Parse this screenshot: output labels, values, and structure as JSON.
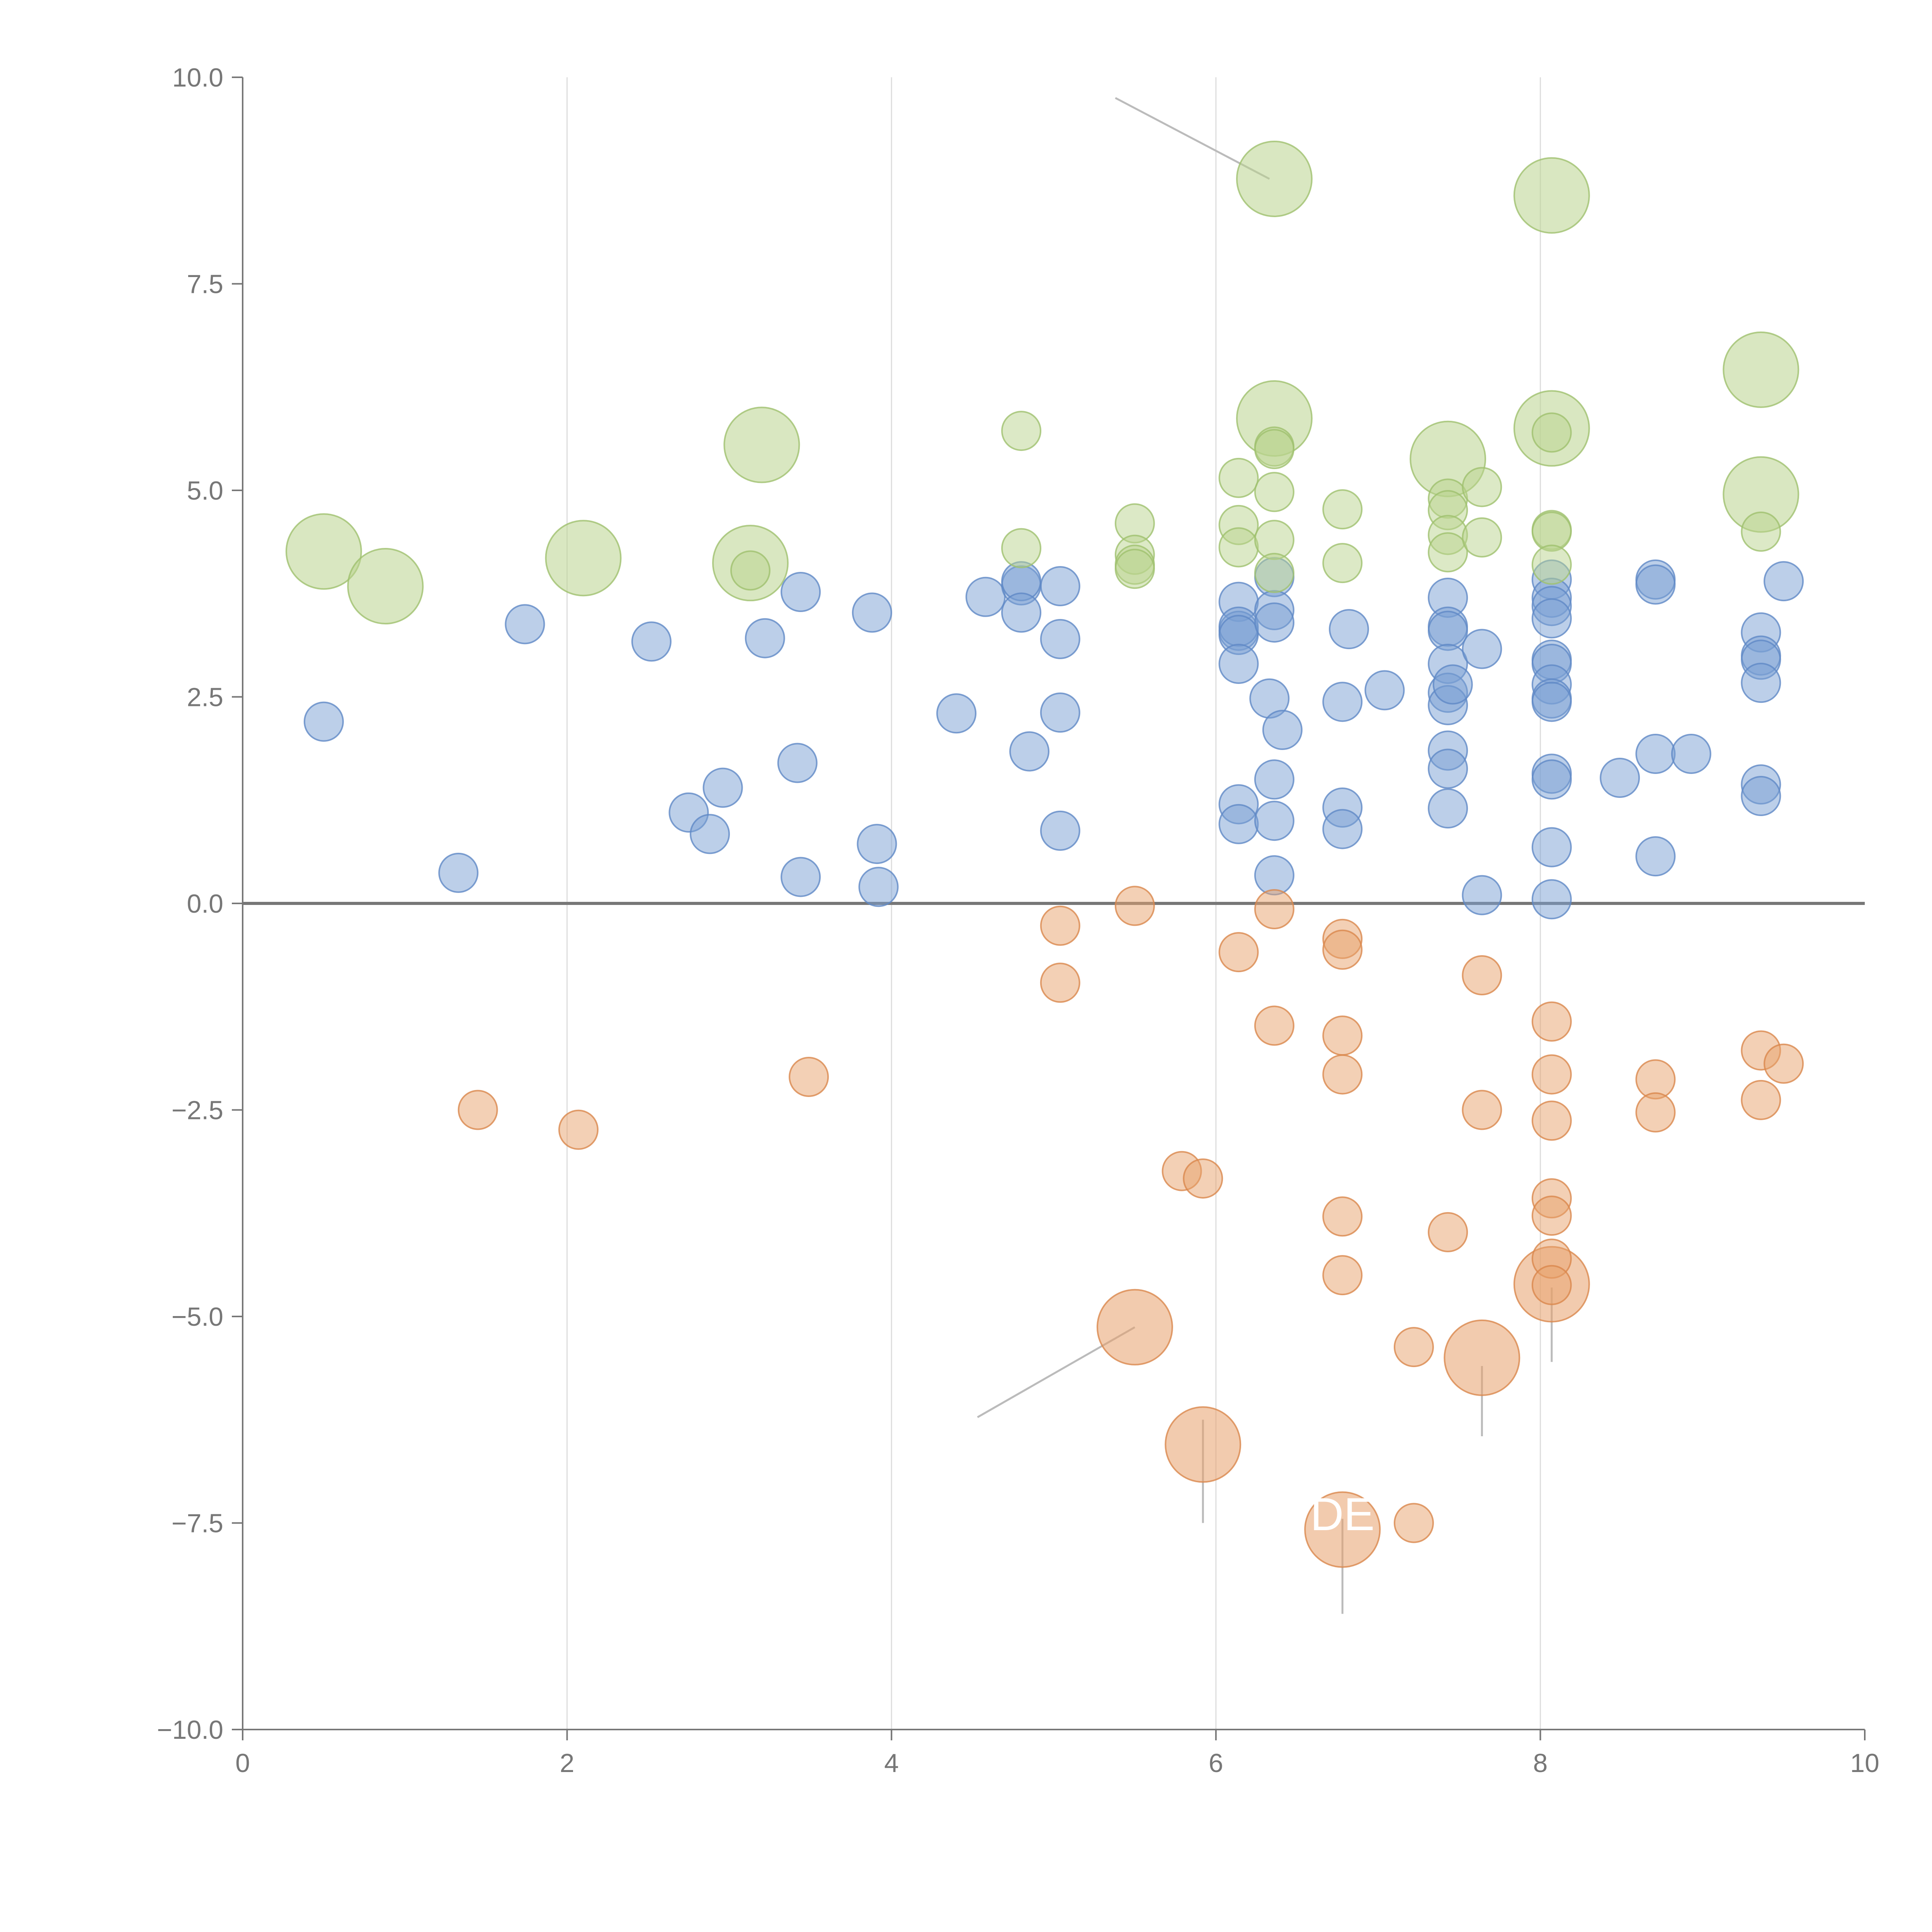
{
  "chart_data": {
    "type": "scatter",
    "title": "",
    "xlabel": "",
    "ylabel": "",
    "xlim": [
      0,
      10
    ],
    "ylim": [
      -10,
      10
    ],
    "x_ticks": [
      0,
      2,
      4,
      6,
      8,
      10
    ],
    "x_tick_labels": [
      "0",
      "2",
      "4",
      "6",
      "8",
      "10"
    ],
    "y_ticks": [
      -10,
      -7.5,
      -5,
      -2.5,
      0,
      2.5,
      5,
      7.5,
      10
    ],
    "y_tick_labels": [
      "−10.0",
      "−7.5",
      "−5.0",
      "−2.5",
      "0.0",
      "2.5",
      "5.0",
      "7.5",
      "10.0"
    ],
    "vertical_gridlines_at": [
      2,
      4,
      6,
      8
    ],
    "zero_line": true,
    "legend": "none",
    "colors": {
      "blue": "#7a9fd4",
      "blue_stroke": "#5f88c6",
      "orange": "#e8a16c",
      "orange_stroke": "#d9874c",
      "green": "#b9d48e",
      "green_stroke": "#9fc06e",
      "axis": "#777777",
      "grid": "#dddddd",
      "zero": "#777777",
      "leader": "#bbbbbb"
    },
    "series": [
      {
        "name": "blue",
        "size": "small",
        "points": [
          [
            0.5,
            2.2
          ],
          [
            1.33,
            0.37
          ],
          [
            1.74,
            3.38
          ],
          [
            2.52,
            3.17
          ],
          [
            2.75,
            1.1
          ],
          [
            2.88,
            0.84
          ],
          [
            2.96,
            1.4
          ],
          [
            3.22,
            3.21
          ],
          [
            3.42,
            1.7
          ],
          [
            3.44,
            3.77
          ],
          [
            3.44,
            0.32
          ],
          [
            3.88,
            3.52
          ],
          [
            3.91,
            0.72
          ],
          [
            3.92,
            0.2
          ],
          [
            4.4,
            2.3
          ],
          [
            4.58,
            3.71
          ],
          [
            4.8,
            3.85
          ],
          [
            4.8,
            3.9
          ],
          [
            4.8,
            3.52
          ],
          [
            4.85,
            1.84
          ],
          [
            5.04,
            3.84
          ],
          [
            5.04,
            3.2
          ],
          [
            5.04,
            2.31
          ],
          [
            5.04,
            0.88
          ],
          [
            6.14,
            3.65
          ],
          [
            6.14,
            3.3
          ],
          [
            6.14,
            3.35
          ],
          [
            6.14,
            3.25
          ],
          [
            6.14,
            2.9
          ],
          [
            6.14,
            1.2
          ],
          [
            6.14,
            0.96
          ],
          [
            6.33,
            2.48
          ],
          [
            6.36,
            3.95
          ],
          [
            6.36,
            3.55
          ],
          [
            6.36,
            3.4
          ],
          [
            6.36,
            1.5
          ],
          [
            6.36,
            1.0
          ],
          [
            6.36,
            0.34
          ],
          [
            6.41,
            2.1
          ],
          [
            6.78,
            2.44
          ],
          [
            6.78,
            1.16
          ],
          [
            6.78,
            0.9
          ],
          [
            6.82,
            3.32
          ],
          [
            7.04,
            2.58
          ],
          [
            7.43,
            3.7
          ],
          [
            7.43,
            3.35
          ],
          [
            7.43,
            3.3
          ],
          [
            7.43,
            2.9
          ],
          [
            7.43,
            2.55
          ],
          [
            7.43,
            2.4
          ],
          [
            7.43,
            1.85
          ],
          [
            7.43,
            1.63
          ],
          [
            7.43,
            1.15
          ],
          [
            7.46,
            2.65
          ],
          [
            7.64,
            3.08
          ],
          [
            7.64,
            0.1
          ],
          [
            8.07,
            3.92
          ],
          [
            8.07,
            3.7
          ],
          [
            8.07,
            3.6
          ],
          [
            8.07,
            3.45
          ],
          [
            8.07,
            2.95
          ],
          [
            8.07,
            2.9
          ],
          [
            8.07,
            2.65
          ],
          [
            8.07,
            2.48
          ],
          [
            8.07,
            2.44
          ],
          [
            8.07,
            1.57
          ],
          [
            8.07,
            1.5
          ],
          [
            8.07,
            0.68
          ],
          [
            8.07,
            0.05
          ],
          [
            8.49,
            1.52
          ],
          [
            8.71,
            3.92
          ],
          [
            8.71,
            3.86
          ],
          [
            8.71,
            1.81
          ],
          [
            8.71,
            0.57
          ],
          [
            8.93,
            1.81
          ],
          [
            9.36,
            3.28
          ],
          [
            9.36,
            3.0
          ],
          [
            9.36,
            2.95
          ],
          [
            9.36,
            2.67
          ],
          [
            9.36,
            1.44
          ],
          [
            9.36,
            1.3
          ],
          [
            9.5,
            3.9
          ]
        ]
      },
      {
        "name": "orange",
        "size": "small",
        "points": [
          [
            1.45,
            -2.5
          ],
          [
            2.07,
            -2.74
          ],
          [
            3.49,
            -2.1
          ],
          [
            5.04,
            -0.27
          ],
          [
            5.04,
            -0.96
          ],
          [
            5.5,
            -0.03
          ],
          [
            5.79,
            -3.24
          ],
          [
            5.92,
            -3.33
          ],
          [
            6.14,
            -0.59
          ],
          [
            6.36,
            -0.07
          ],
          [
            6.36,
            -1.48
          ],
          [
            6.78,
            -0.43
          ],
          [
            6.78,
            -0.56
          ],
          [
            6.78,
            -1.6
          ],
          [
            6.78,
            -2.07
          ],
          [
            6.78,
            -3.79
          ],
          [
            6.78,
            -4.5
          ],
          [
            7.22,
            -5.37
          ],
          [
            7.22,
            -7.5
          ],
          [
            7.43,
            -3.98
          ],
          [
            7.64,
            -0.87
          ],
          [
            7.64,
            -2.5
          ],
          [
            8.07,
            -1.43
          ],
          [
            8.07,
            -2.07
          ],
          [
            8.07,
            -2.63
          ],
          [
            8.07,
            -3.57
          ],
          [
            8.07,
            -3.78
          ],
          [
            8.07,
            -4.3
          ],
          [
            8.07,
            -4.62
          ],
          [
            8.71,
            -2.13
          ],
          [
            8.71,
            -2.53
          ],
          [
            9.36,
            -1.78
          ],
          [
            9.36,
            -2.38
          ],
          [
            9.5,
            -1.94
          ]
        ]
      },
      {
        "name": "orange",
        "size": "large",
        "points": [
          [
            5.5,
            -5.13
          ],
          [
            5.92,
            -6.55
          ],
          [
            6.78,
            -7.58
          ],
          [
            7.64,
            -5.5
          ],
          [
            8.07,
            -4.61
          ]
        ]
      },
      {
        "name": "green",
        "size": "small",
        "points": [
          [
            3.13,
            4.03
          ],
          [
            4.8,
            5.72
          ],
          [
            4.8,
            4.3
          ],
          [
            5.5,
            4.6
          ],
          [
            5.5,
            4.22
          ],
          [
            5.5,
            4.1
          ],
          [
            5.5,
            4.05
          ],
          [
            6.14,
            5.15
          ],
          [
            6.14,
            4.58
          ],
          [
            6.14,
            4.31
          ],
          [
            6.36,
            5.53
          ],
          [
            6.36,
            5.5
          ],
          [
            6.36,
            4.98
          ],
          [
            6.36,
            4.4
          ],
          [
            6.36,
            4.0
          ],
          [
            6.78,
            4.77
          ],
          [
            6.78,
            4.12
          ],
          [
            7.43,
            4.9
          ],
          [
            7.43,
            4.76
          ],
          [
            7.43,
            4.46
          ],
          [
            7.43,
            4.25
          ],
          [
            7.64,
            5.04
          ],
          [
            7.64,
            4.43
          ],
          [
            8.07,
            5.7
          ],
          [
            8.07,
            4.52
          ],
          [
            8.07,
            4.5
          ],
          [
            8.07,
            4.1
          ],
          [
            9.36,
            4.5
          ]
        ]
      },
      {
        "name": "green",
        "size": "large",
        "points": [
          [
            0.5,
            4.26
          ],
          [
            0.88,
            3.84
          ],
          [
            2.1,
            4.18
          ],
          [
            3.13,
            4.12
          ],
          [
            3.2,
            5.55
          ],
          [
            6.36,
            8.77
          ],
          [
            6.36,
            5.87
          ],
          [
            7.43,
            5.38
          ],
          [
            8.07,
            8.57
          ],
          [
            8.07,
            5.75
          ],
          [
            9.36,
            6.46
          ],
          [
            9.36,
            4.95
          ]
        ]
      }
    ],
    "annotations": [
      {
        "label": "DE",
        "x": 6.78,
        "y": -7.4
      }
    ]
  }
}
